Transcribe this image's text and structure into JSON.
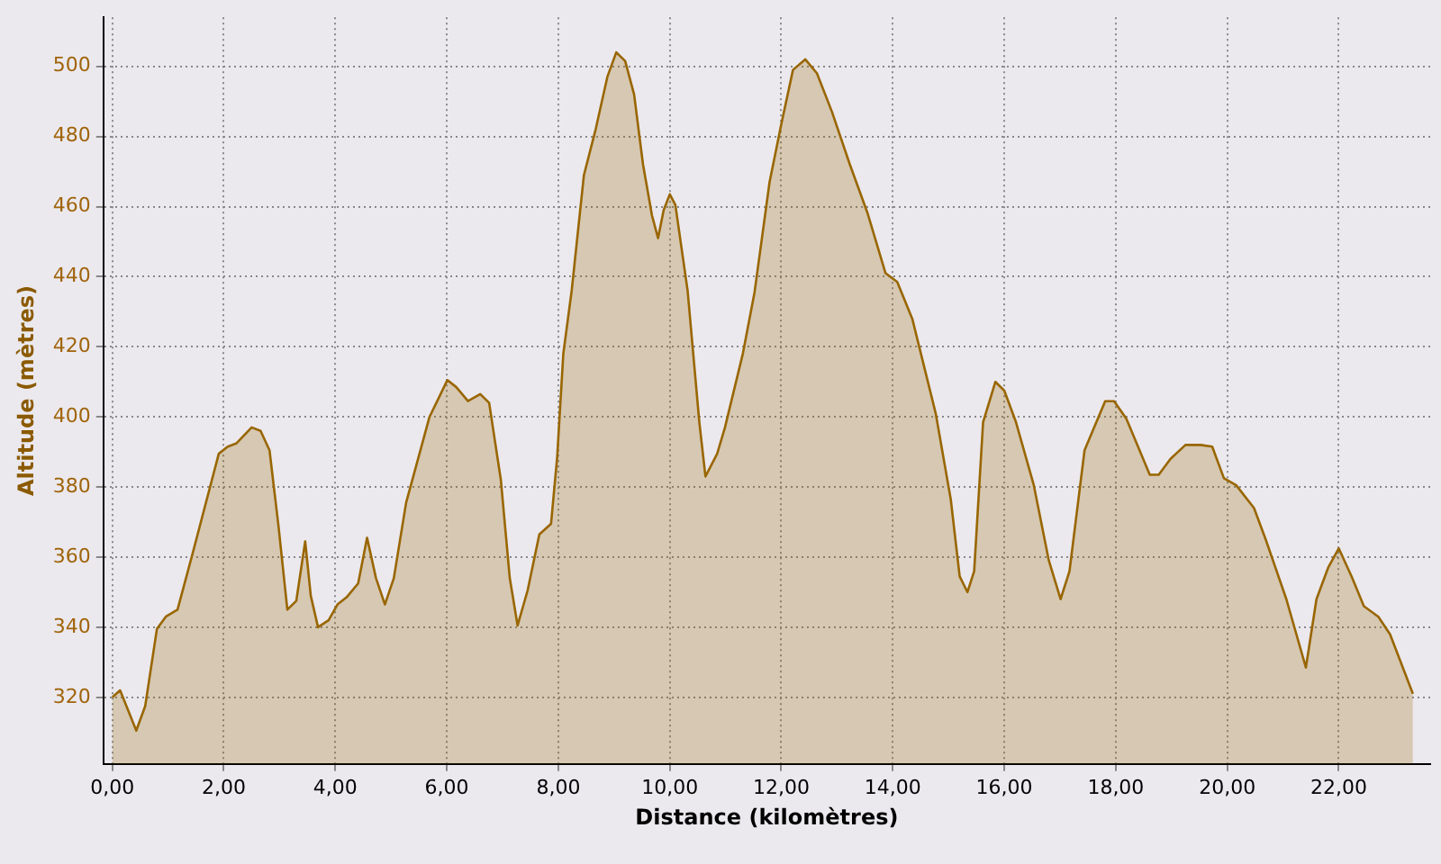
{
  "chart_data": {
    "type": "area",
    "xlabel": "Distance (kilomètres)",
    "ylabel": "Altitude (mètres)",
    "xlim": [
      -0.16,
      23.64
    ],
    "ylim": [
      301,
      514
    ],
    "xticks": [
      {
        "value": 0,
        "label": "0,00"
      },
      {
        "value": 2,
        "label": "2,00"
      },
      {
        "value": 4,
        "label": "4,00"
      },
      {
        "value": 6,
        "label": "6,00"
      },
      {
        "value": 8,
        "label": "8,00"
      },
      {
        "value": 10,
        "label": "10,00"
      },
      {
        "value": 12,
        "label": "12,00"
      },
      {
        "value": 14,
        "label": "14,00"
      },
      {
        "value": 16,
        "label": "16,00"
      },
      {
        "value": 18,
        "label": "18,00"
      },
      {
        "value": 20,
        "label": "20,00"
      },
      {
        "value": 22,
        "label": "22,00"
      }
    ],
    "yticks": [
      320,
      340,
      360,
      380,
      400,
      420,
      440,
      460,
      480,
      500
    ],
    "grid": true,
    "series": [
      {
        "color": "#996600",
        "x": [
          0,
          0.14,
          0.43,
          0.59,
          0.8,
          0.96,
          1.17,
          1.44,
          1.91,
          2.07,
          2.23,
          2.5,
          2.66,
          2.82,
          2.98,
          3.14,
          3.3,
          3.46,
          3.56,
          3.69,
          3.88,
          4.04,
          4.2,
          4.41,
          4.57,
          4.73,
          4.89,
          5.05,
          5.27,
          5.69,
          6.01,
          6.17,
          6.38,
          6.6,
          6.76,
          6.97,
          7.13,
          7.27,
          7.45,
          7.66,
          7.87,
          7.98,
          8.09,
          8.24,
          8.46,
          8.67,
          8.88,
          9.04,
          9.2,
          9.36,
          9.52,
          9.68,
          9.79,
          9.89,
          10,
          10.1,
          10.32,
          10.53,
          10.64,
          10.85,
          10.99,
          11.31,
          11.52,
          11.79,
          12,
          12.21,
          12.43,
          12.64,
          12.91,
          13.23,
          13.55,
          13.87,
          14.08,
          14.35,
          14.77,
          15.04,
          15.2,
          15.34,
          15.46,
          15.62,
          15.84,
          16,
          16.21,
          16.53,
          16.8,
          17.01,
          17.17,
          17.44,
          17.81,
          17.97,
          18.19,
          18.61,
          18.77,
          18.98,
          19.25,
          19.52,
          19.73,
          19.94,
          20.16,
          20.48,
          20.69,
          21.06,
          21.41,
          21.6,
          21.81,
          22,
          22.23,
          22.45,
          22.71,
          22.92,
          23.33
        ],
        "values": [
          320,
          322,
          310.5,
          317.5,
          339.5,
          343,
          345,
          361,
          389.5,
          391.5,
          392.5,
          397,
          396,
          390.5,
          369,
          345,
          347.5,
          364.5,
          349,
          340,
          342,
          346.5,
          348.5,
          352.5,
          365.5,
          354,
          346.5,
          354,
          375.5,
          400,
          410.5,
          408.5,
          404.5,
          406.5,
          404,
          382,
          354,
          340.5,
          350.5,
          366.5,
          369.5,
          388.5,
          418,
          436,
          469,
          482,
          497,
          504,
          501.5,
          492,
          472,
          457.5,
          451,
          459,
          463.5,
          460.5,
          436,
          398.5,
          383,
          389.5,
          397,
          418,
          435.5,
          467,
          483.5,
          499,
          502,
          498,
          487,
          472,
          458,
          441,
          438.5,
          428,
          401,
          376.5,
          354.5,
          350,
          356,
          398.5,
          410,
          407.5,
          398.5,
          380.5,
          359,
          348,
          356,
          390.5,
          404.5,
          404.5,
          399.5,
          383.5,
          383.5,
          388,
          392,
          392,
          391.5,
          382.5,
          380.5,
          374,
          365,
          348,
          328.5,
          348,
          357,
          362.5,
          354.5,
          346,
          343,
          338,
          321
        ]
      }
    ]
  }
}
